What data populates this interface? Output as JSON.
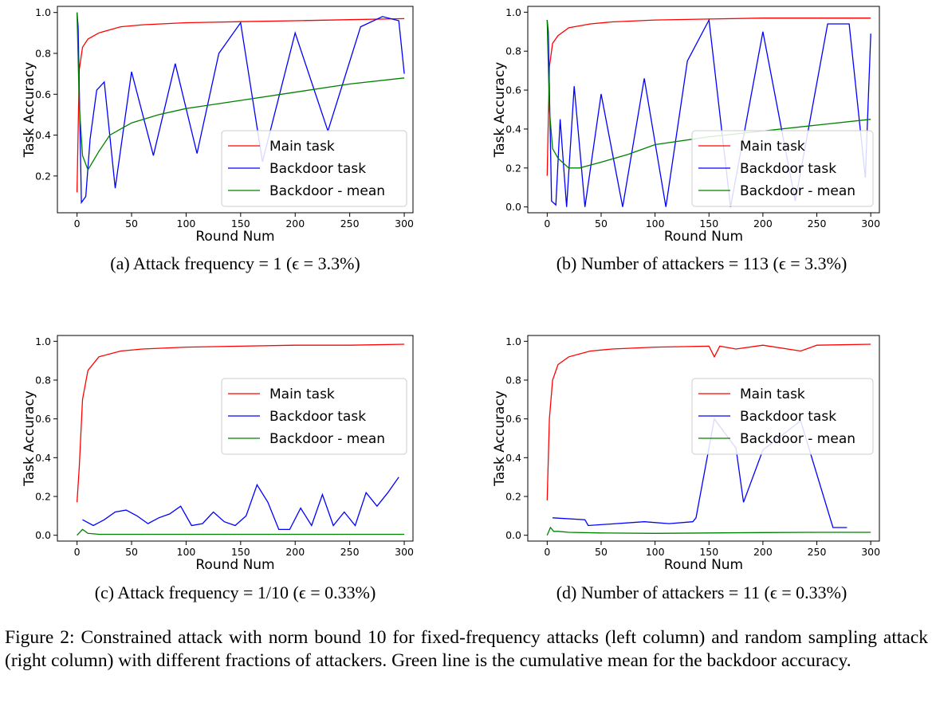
{
  "colors": {
    "main": "#ff0000",
    "backdoor": "#0000ff",
    "mean": "#008000"
  },
  "chart_data": [
    {
      "type": "line",
      "subcaption": "(a)  Attack frequency = 1 (ϵ = 3.3%)",
      "xlabel": "Round Num",
      "ylabel": "Task Accuracy",
      "xlim": [
        -18,
        308
      ],
      "ylim": [
        0.02,
        1.03
      ],
      "xticks": [
        0,
        50,
        100,
        150,
        200,
        250,
        300
      ],
      "yticks": [
        0.2,
        0.4,
        0.6,
        0.8,
        1.0
      ],
      "ytick_labels": [
        "0.2",
        "0.4",
        "0.6",
        "0.8",
        "1.0"
      ],
      "grid": false,
      "legend_position": "lower-right",
      "series": [
        {
          "name": "Main task",
          "color": "#ff0000",
          "x": [
            0,
            2,
            5,
            10,
            20,
            40,
            60,
            100,
            150,
            200,
            250,
            300
          ],
          "y": [
            0.12,
            0.72,
            0.83,
            0.87,
            0.9,
            0.93,
            0.94,
            0.95,
            0.955,
            0.96,
            0.965,
            0.97
          ]
        },
        {
          "name": "Backdoor task",
          "color": "#0000ff",
          "x": [
            0,
            1,
            4,
            8,
            12,
            18,
            25,
            35,
            50,
            70,
            90,
            110,
            130,
            150,
            170,
            200,
            230,
            260,
            280,
            295,
            300
          ],
          "y": [
            1.0,
            0.93,
            0.07,
            0.1,
            0.38,
            0.62,
            0.66,
            0.14,
            0.71,
            0.3,
            0.75,
            0.31,
            0.8,
            0.95,
            0.27,
            0.9,
            0.42,
            0.93,
            0.98,
            0.96,
            0.7
          ]
        },
        {
          "name": "Backdoor - mean",
          "color": "#008000",
          "x": [
            0,
            2,
            5,
            10,
            20,
            30,
            50,
            75,
            100,
            150,
            200,
            250,
            300
          ],
          "y": [
            1.0,
            0.55,
            0.3,
            0.23,
            0.32,
            0.4,
            0.46,
            0.5,
            0.53,
            0.57,
            0.61,
            0.65,
            0.68
          ]
        }
      ]
    },
    {
      "type": "line",
      "subcaption": "(b)  Number of attackers = 113 (ϵ = 3.3%)",
      "xlabel": "Round Num",
      "ylabel": "Task Accuracy",
      "xlim": [
        -18,
        308
      ],
      "ylim": [
        -0.03,
        1.03
      ],
      "xticks": [
        0,
        50,
        100,
        150,
        200,
        250,
        300
      ],
      "yticks": [
        0.0,
        0.2,
        0.4,
        0.6,
        0.8,
        1.0
      ],
      "ytick_labels": [
        "0.0",
        "0.2",
        "0.4",
        "0.6",
        "0.8",
        "1.0"
      ],
      "grid": false,
      "legend_position": "lower-right",
      "series": [
        {
          "name": "Main task",
          "color": "#ff0000",
          "x": [
            0,
            2,
            5,
            10,
            20,
            40,
            60,
            100,
            150,
            200,
            250,
            300
          ],
          "y": [
            0.16,
            0.72,
            0.84,
            0.88,
            0.92,
            0.94,
            0.95,
            0.96,
            0.965,
            0.97,
            0.97,
            0.97
          ]
        },
        {
          "name": "Backdoor task",
          "color": "#0000ff",
          "x": [
            0,
            1,
            4,
            8,
            12,
            18,
            25,
            35,
            50,
            70,
            90,
            110,
            130,
            150,
            170,
            200,
            230,
            260,
            280,
            295,
            300
          ],
          "y": [
            0.96,
            0.9,
            0.03,
            0.01,
            0.45,
            0.0,
            0.62,
            0.0,
            0.58,
            0.0,
            0.66,
            0.0,
            0.75,
            0.96,
            0.0,
            0.9,
            0.03,
            0.94,
            0.94,
            0.15,
            0.89
          ]
        },
        {
          "name": "Backdoor - mean",
          "color": "#008000",
          "x": [
            0,
            2,
            5,
            10,
            20,
            30,
            50,
            75,
            100,
            150,
            200,
            250,
            300
          ],
          "y": [
            0.96,
            0.5,
            0.3,
            0.25,
            0.2,
            0.2,
            0.23,
            0.27,
            0.32,
            0.36,
            0.39,
            0.42,
            0.45
          ]
        }
      ]
    },
    {
      "type": "line",
      "subcaption": "(c)  Attack frequency = 1/10 (ϵ = 0.33%)",
      "xlabel": "Round Num",
      "ylabel": "Task Accuracy",
      "xlim": [
        -18,
        308
      ],
      "ylim": [
        -0.03,
        1.03
      ],
      "xticks": [
        0,
        50,
        100,
        150,
        200,
        250,
        300
      ],
      "yticks": [
        0.0,
        0.2,
        0.4,
        0.6,
        0.8,
        1.0
      ],
      "ytick_labels": [
        "0.0",
        "0.2",
        "0.4",
        "0.6",
        "0.8",
        "1.0"
      ],
      "grid": false,
      "legend_position": "upper-right",
      "series": [
        {
          "name": "Main task",
          "color": "#ff0000",
          "x": [
            0,
            2,
            5,
            10,
            20,
            40,
            60,
            100,
            150,
            200,
            250,
            300
          ],
          "y": [
            0.17,
            0.35,
            0.7,
            0.85,
            0.92,
            0.95,
            0.96,
            0.97,
            0.975,
            0.98,
            0.98,
            0.985
          ]
        },
        {
          "name": "Backdoor task",
          "color": "#0000ff",
          "x": [
            5,
            15,
            25,
            35,
            45,
            55,
            65,
            75,
            85,
            95,
            105,
            115,
            125,
            135,
            145,
            155,
            165,
            175,
            185,
            195,
            205,
            215,
            225,
            235,
            245,
            255,
            265,
            275,
            285,
            295
          ],
          "y": [
            0.08,
            0.05,
            0.08,
            0.12,
            0.13,
            0.1,
            0.06,
            0.09,
            0.11,
            0.15,
            0.05,
            0.06,
            0.12,
            0.07,
            0.05,
            0.1,
            0.26,
            0.17,
            0.03,
            0.03,
            0.14,
            0.05,
            0.21,
            0.05,
            0.12,
            0.05,
            0.22,
            0.15,
            0.22,
            0.3
          ]
        },
        {
          "name": "Backdoor - mean",
          "color": "#008000",
          "x": [
            0,
            5,
            10,
            20,
            50,
            100,
            150,
            200,
            250,
            300
          ],
          "y": [
            0.0,
            0.03,
            0.01,
            0.005,
            0.005,
            0.005,
            0.005,
            0.005,
            0.005,
            0.005
          ]
        }
      ]
    },
    {
      "type": "line",
      "subcaption": "(d)  Number of attackers = 11 (ϵ = 0.33%)",
      "xlabel": "Round Num",
      "ylabel": "Task Accuracy",
      "xlim": [
        -18,
        308
      ],
      "ylim": [
        -0.03,
        1.03
      ],
      "xticks": [
        0,
        50,
        100,
        150,
        200,
        250,
        300
      ],
      "yticks": [
        0.0,
        0.2,
        0.4,
        0.6,
        0.8,
        1.0
      ],
      "ytick_labels": [
        "0.0",
        "0.2",
        "0.4",
        "0.6",
        "0.8",
        "1.0"
      ],
      "grid": false,
      "legend_position": "upper-right",
      "series": [
        {
          "name": "Main task",
          "color": "#ff0000",
          "x": [
            0,
            2,
            5,
            10,
            20,
            40,
            60,
            100,
            150,
            155,
            160,
            175,
            200,
            235,
            250,
            300
          ],
          "y": [
            0.18,
            0.6,
            0.8,
            0.88,
            0.92,
            0.95,
            0.96,
            0.97,
            0.975,
            0.92,
            0.975,
            0.96,
            0.98,
            0.95,
            0.98,
            0.985
          ]
        },
        {
          "name": "Backdoor task",
          "color": "#0000ff",
          "x": [
            5,
            35,
            38,
            90,
            113,
            135,
            138,
            155,
            175,
            182,
            200,
            235,
            265,
            278
          ],
          "y": [
            0.09,
            0.08,
            0.05,
            0.07,
            0.06,
            0.07,
            0.09,
            0.6,
            0.45,
            0.17,
            0.44,
            0.59,
            0.04,
            0.04
          ]
        },
        {
          "name": "Backdoor - mean",
          "color": "#008000",
          "x": [
            0,
            3,
            6,
            10,
            20,
            50,
            100,
            150,
            200,
            250,
            300
          ],
          "y": [
            0.0,
            0.04,
            0.02,
            0.02,
            0.015,
            0.012,
            0.01,
            0.012,
            0.014,
            0.015,
            0.015
          ]
        }
      ]
    }
  ],
  "figure_caption": "Figure 2: Constrained attack with norm bound 10 for fixed-frequency attacks (left column) and random sampling attack (right column) with different fractions of attackers. Green line is the cumulative mean for the backdoor accuracy."
}
